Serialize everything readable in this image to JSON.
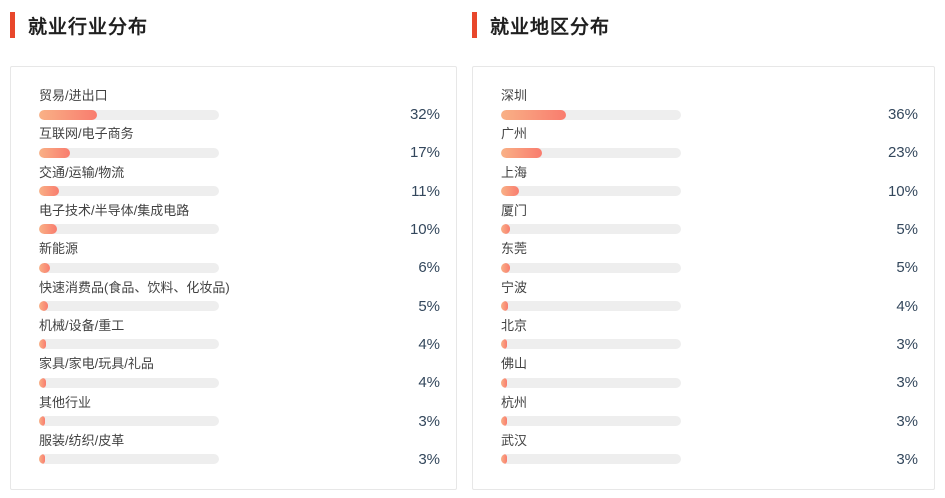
{
  "colors": {
    "accent": "#e8472b",
    "track": "#eeeeee",
    "bar_gradient_start": "#f9b186",
    "bar_gradient_end": "#f97c6e",
    "percent_text": "#33475c"
  },
  "panels": [
    {
      "title": "就业行业分布",
      "rows": [
        {
          "label": "贸易/进出口",
          "value": 32,
          "percent": "32%"
        },
        {
          "label": "互联网/电子商务",
          "value": 17,
          "percent": "17%"
        },
        {
          "label": "交通/运输/物流",
          "value": 11,
          "percent": "11%"
        },
        {
          "label": "电子技术/半导体/集成电路",
          "value": 10,
          "percent": "10%"
        },
        {
          "label": "新能源",
          "value": 6,
          "percent": "6%"
        },
        {
          "label": "快速消费品(食品、饮料、化妆品)",
          "value": 5,
          "percent": "5%"
        },
        {
          "label": "机械/设备/重工",
          "value": 4,
          "percent": "4%"
        },
        {
          "label": "家具/家电/玩具/礼品",
          "value": 4,
          "percent": "4%"
        },
        {
          "label": "其他行业",
          "value": 3,
          "percent": "3%"
        },
        {
          "label": "服装/纺织/皮革",
          "value": 3,
          "percent": "3%"
        }
      ]
    },
    {
      "title": "就业地区分布",
      "rows": [
        {
          "label": "深圳",
          "value": 36,
          "percent": "36%"
        },
        {
          "label": "广州",
          "value": 23,
          "percent": "23%"
        },
        {
          "label": "上海",
          "value": 10,
          "percent": "10%"
        },
        {
          "label": "厦门",
          "value": 5,
          "percent": "5%"
        },
        {
          "label": "东莞",
          "value": 5,
          "percent": "5%"
        },
        {
          "label": "宁波",
          "value": 4,
          "percent": "4%"
        },
        {
          "label": "北京",
          "value": 3,
          "percent": "3%"
        },
        {
          "label": "佛山",
          "value": 3,
          "percent": "3%"
        },
        {
          "label": "杭州",
          "value": 3,
          "percent": "3%"
        },
        {
          "label": "武汉",
          "value": 3,
          "percent": "3%"
        }
      ]
    }
  ],
  "chart_data": [
    {
      "type": "bar",
      "orientation": "horizontal",
      "title": "就业行业分布",
      "categories": [
        "贸易/进出口",
        "互联网/电子商务",
        "交通/运输/物流",
        "电子技术/半导体/集成电路",
        "新能源",
        "快速消费品(食品、饮料、化妆品)",
        "机械/设备/重工",
        "家具/家电/玩具/礼品",
        "其他行业",
        "服装/纺织/皮革"
      ],
      "values": [
        32,
        17,
        11,
        10,
        6,
        5,
        4,
        4,
        3,
        3
      ],
      "unit": "%",
      "xlabel": "",
      "ylabel": "",
      "xlim": [
        0,
        100
      ],
      "grid": false,
      "legend": false
    },
    {
      "type": "bar",
      "orientation": "horizontal",
      "title": "就业地区分布",
      "categories": [
        "深圳",
        "广州",
        "上海",
        "厦门",
        "东莞",
        "宁波",
        "北京",
        "佛山",
        "杭州",
        "武汉"
      ],
      "values": [
        36,
        23,
        10,
        5,
        5,
        4,
        3,
        3,
        3,
        3
      ],
      "unit": "%",
      "xlabel": "",
      "ylabel": "",
      "xlim": [
        0,
        100
      ],
      "grid": false,
      "legend": false
    }
  ]
}
